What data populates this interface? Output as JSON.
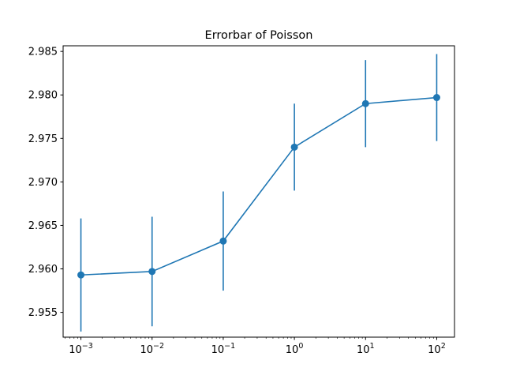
{
  "chart_data": {
    "type": "line",
    "title": "Errorbar of Poisson",
    "xlabel": "",
    "ylabel": "",
    "x_scale": "log",
    "grid": false,
    "color": "#1f77b4",
    "x": [
      0.001,
      0.01,
      0.1,
      1,
      10,
      100
    ],
    "x_tick_labels": [
      {
        "value": 0.001,
        "base": "10",
        "exp": "−3"
      },
      {
        "value": 0.01,
        "base": "10",
        "exp": "−2"
      },
      {
        "value": 0.1,
        "base": "10",
        "exp": "−1"
      },
      {
        "value": 1,
        "base": "10",
        "exp": "0"
      },
      {
        "value": 10,
        "base": "10",
        "exp": "1"
      },
      {
        "value": 100,
        "base": "10",
        "exp": "2"
      }
    ],
    "y_ticks": [
      2.955,
      2.96,
      2.965,
      2.97,
      2.975,
      2.98,
      2.985
    ],
    "y_tick_labels": [
      "2.955",
      "2.960",
      "2.965",
      "2.970",
      "2.975",
      "2.980",
      "2.985"
    ],
    "series": [
      {
        "values": [
          2.9593,
          2.9597,
          2.9632,
          2.974,
          2.979,
          2.9797
        ],
        "error": [
          0.0065,
          0.0063,
          0.0057,
          0.005,
          0.005,
          0.005
        ]
      }
    ]
  }
}
